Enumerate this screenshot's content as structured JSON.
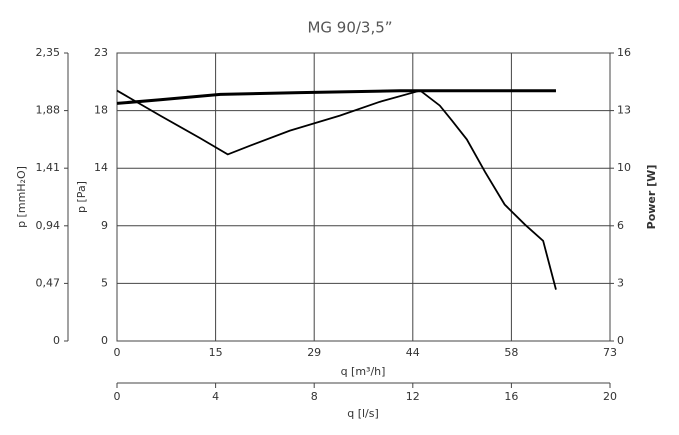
{
  "chart_data": {
    "type": "line",
    "title": "MG 90/3,5”",
    "xlabel": "q [m³/h]",
    "ylabel": "p [Pa]",
    "y2label": "Power [W]",
    "y3label": "p [mmH₂O]",
    "x2label": "q [l/s]",
    "xlim": [
      0,
      73
    ],
    "xticks": [
      0,
      {
        "value": 14.6,
        "label": "15"
      },
      {
        "value": 29.2,
        "label": "29"
      },
      {
        "value": 43.8,
        "label": "44"
      },
      {
        "value": 58.4,
        "label": "58"
      },
      73
    ],
    "x2lim": [
      0,
      20
    ],
    "x2ticks": [
      0,
      4,
      8,
      12,
      16,
      20
    ],
    "ylim": [
      0,
      23
    ],
    "yticks": [
      0,
      {
        "value": 4.6,
        "label": "5"
      },
      {
        "value": 9.2,
        "label": "9"
      },
      {
        "value": 13.8,
        "label": "14"
      },
      {
        "value": 18.4,
        "label": "18"
      },
      23
    ],
    "y2lim": [
      0,
      16
    ],
    "y2ticks": [
      0,
      {
        "value": 3.2,
        "label": "3"
      },
      {
        "value": 6.4,
        "label": "6"
      },
      {
        "value": 9.6,
        "label": "10"
      },
      {
        "value": 12.8,
        "label": "13"
      },
      16
    ],
    "y3lim": [
      0,
      2.35
    ],
    "y3ticks": [
      {
        "value": 0,
        "label": "0"
      },
      {
        "value": 0.47,
        "label": "0,47"
      },
      {
        "value": 0.94,
        "label": "0,94"
      },
      {
        "value": 1.41,
        "label": "1,41"
      },
      {
        "value": 1.88,
        "label": "1,88"
      },
      {
        "value": 2.35,
        "label": "2,35"
      }
    ],
    "grid": true,
    "series": [
      {
        "color": "#000000",
        "axis": "y",
        "x": [
          0,
          6.4,
          12.3,
          16.4,
          19.7,
          25.6,
          33.0,
          38.9,
          44.9,
          47.8,
          49.6,
          51.8,
          54.5,
          57.4,
          60.4,
          63.1,
          65.0
        ],
        "values": [
          20.0,
          18.0,
          16.2,
          14.9,
          15.6,
          16.8,
          18.0,
          19.1,
          20.0,
          18.8,
          17.6,
          16.1,
          13.5,
          10.9,
          9.3,
          8.0,
          4.1
        ]
      },
      {
        "color": "#000000",
        "axis": "y2",
        "x": [
          0,
          6.4,
          15.3,
          27.1,
          41.9,
          49.3,
          65.0
        ],
        "values": [
          13.2,
          13.4,
          13.7,
          13.8,
          13.9,
          13.9,
          13.9
        ]
      }
    ]
  }
}
